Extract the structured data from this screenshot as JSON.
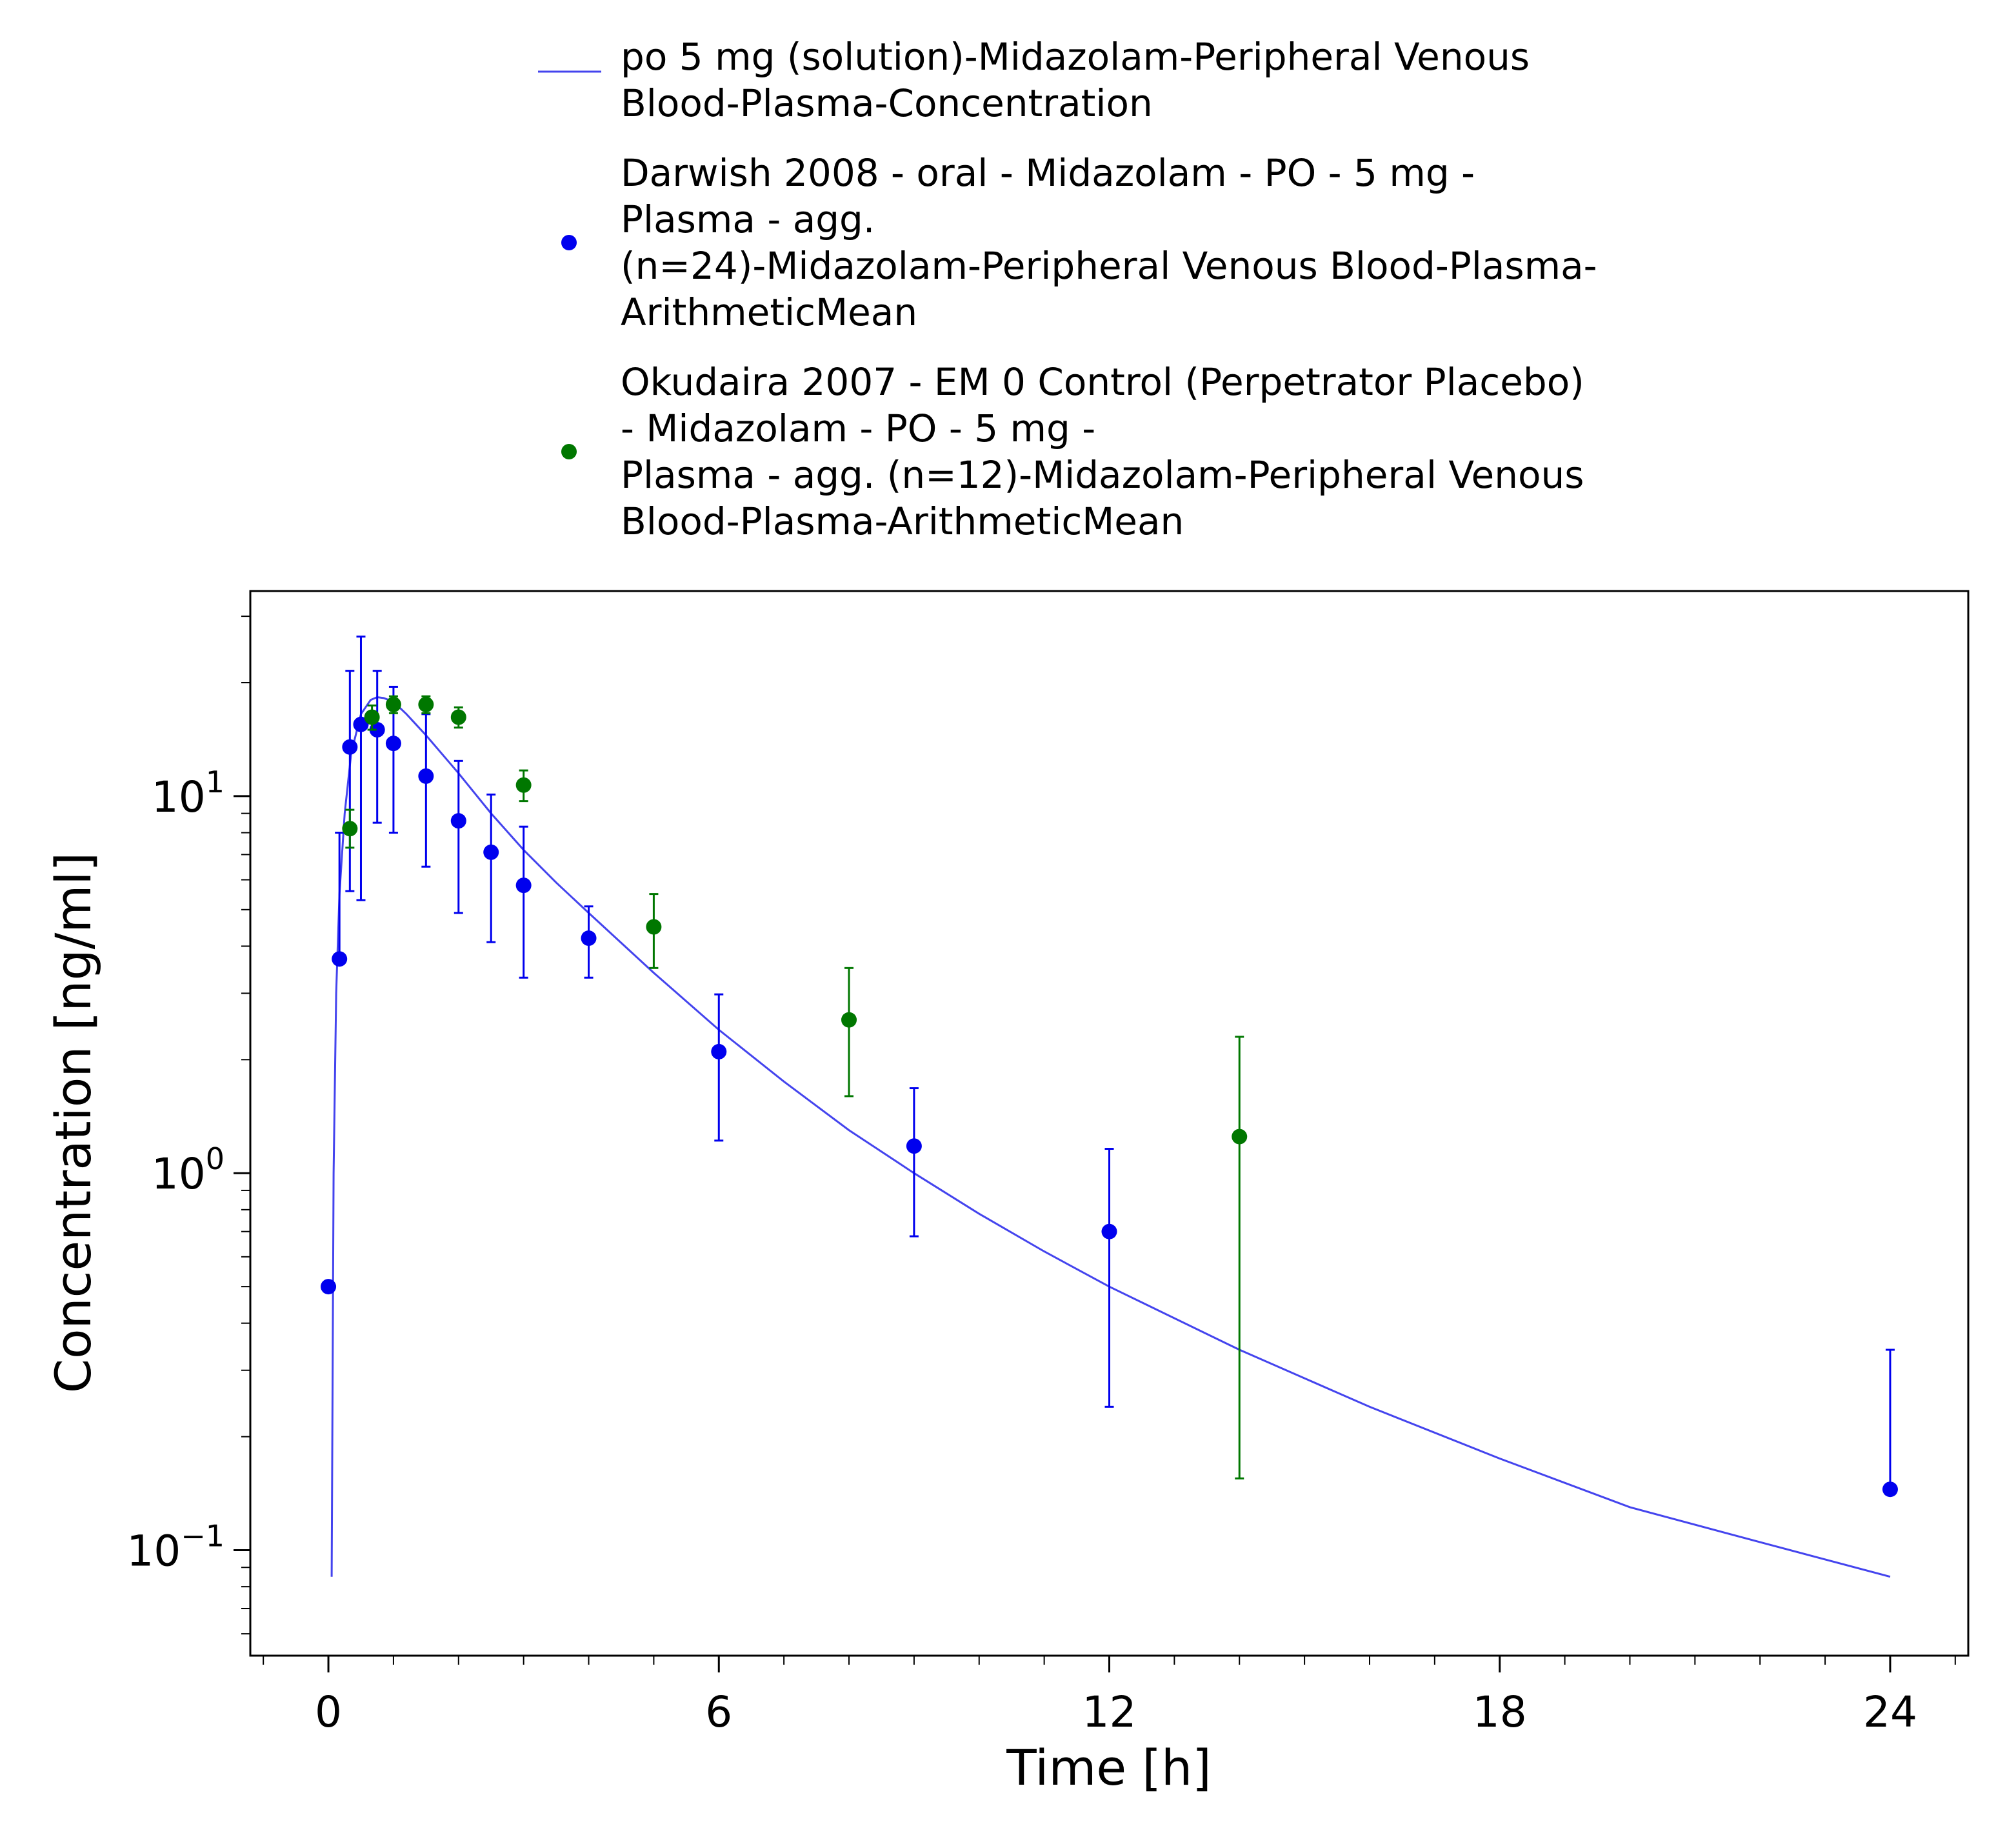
{
  "chart_data": {
    "type": "line",
    "title": "",
    "xlabel": "Time [h]",
    "ylabel": "Concentration [ng/ml]",
    "xlim": [
      -1.2,
      25.2
    ],
    "ylim": [
      0.0525,
      35
    ],
    "y_scale": "log",
    "grid": false,
    "legend_position": "top-center",
    "x_ticks": [
      {
        "value": 0,
        "label": "0"
      },
      {
        "value": 6,
        "label": "6"
      },
      {
        "value": 12,
        "label": "12"
      },
      {
        "value": 18,
        "label": "18"
      },
      {
        "value": 24,
        "label": "24"
      }
    ],
    "y_ticks": [
      {
        "value": 10,
        "base": "10",
        "exp": "1"
      },
      {
        "value": 1,
        "base": "10",
        "exp": "0"
      },
      {
        "value": 0.1,
        "base": "10",
        "exp": "−1"
      }
    ],
    "series": [
      {
        "name_lines": [
          "po 5 mg (solution)-Midazolam-Peripheral Venous",
          "Blood-Plasma-Concentration"
        ],
        "kind": "line",
        "color": "#4444ee",
        "x": [
          0.05,
          0.08,
          0.12,
          0.17,
          0.25,
          0.35,
          0.5,
          0.65,
          0.75,
          0.85,
          1.0,
          1.2,
          1.5,
          2.0,
          2.5,
          3.0,
          3.5,
          4.0,
          5.0,
          6.0,
          7.0,
          8.0,
          9.0,
          10.0,
          11.0,
          12.0,
          14.0,
          16.0,
          18.0,
          20.0,
          22.0,
          24.0
        ],
        "y": [
          0.085,
          1.0,
          3.0,
          5.5,
          9.0,
          13.0,
          16.5,
          18.0,
          18.3,
          18.2,
          17.8,
          16.5,
          14.5,
          11.5,
          9.0,
          7.2,
          5.9,
          4.9,
          3.4,
          2.4,
          1.75,
          1.3,
          1.0,
          0.78,
          0.62,
          0.5,
          0.34,
          0.24,
          0.175,
          0.13,
          0.105,
          0.085
        ]
      },
      {
        "name_lines": [
          "Darwish 2008 - oral - Midazolam - PO - 5 mg -",
          "Plasma - agg.",
          "(n=24)-Midazolam-Peripheral Venous Blood-Plasma-",
          "ArithmeticMean"
        ],
        "kind": "scatter",
        "color": "#0000ee",
        "points": [
          {
            "x": 0.0,
            "y": 0.5,
            "lo": null,
            "hi": null
          },
          {
            "x": 0.17,
            "y": 3.7,
            "lo": null,
            "hi": 8.0
          },
          {
            "x": 0.33,
            "y": 13.5,
            "lo": 5.6,
            "hi": 21.5
          },
          {
            "x": 0.5,
            "y": 15.5,
            "lo": 5.3,
            "hi": 26.5
          },
          {
            "x": 0.75,
            "y": 15.0,
            "lo": 8.5,
            "hi": 21.5
          },
          {
            "x": 1.0,
            "y": 13.8,
            "lo": 8.0,
            "hi": 19.5
          },
          {
            "x": 1.5,
            "y": 11.3,
            "lo": 6.5,
            "hi": 16.5
          },
          {
            "x": 2.0,
            "y": 8.6,
            "lo": 4.9,
            "hi": 12.4
          },
          {
            "x": 2.5,
            "y": 7.1,
            "lo": 4.1,
            "hi": 10.1
          },
          {
            "x": 3.0,
            "y": 5.8,
            "lo": 3.3,
            "hi": 8.3
          },
          {
            "x": 4.0,
            "y": 4.2,
            "lo": 3.3,
            "hi": 5.1
          },
          {
            "x": 6.0,
            "y": 2.1,
            "lo": 1.22,
            "hi": 2.98
          },
          {
            "x": 9.0,
            "y": 1.18,
            "lo": 0.68,
            "hi": 1.68
          },
          {
            "x": 12.0,
            "y": 0.7,
            "lo": 0.24,
            "hi": 1.16
          },
          {
            "x": 24.0,
            "y": 0.145,
            "lo": null,
            "hi": 0.34
          }
        ]
      },
      {
        "name_lines": [
          "Okudaira 2007 - EM 0 Control (Perpetrator Placebo)",
          "- Midazolam - PO - 5 mg -",
          "Plasma - agg. (n=12)-Midazolam-Peripheral Venous",
          "Blood-Plasma-ArithmeticMean"
        ],
        "kind": "scatter",
        "color": "#007700",
        "points": [
          {
            "x": 0.33,
            "y": 8.2,
            "lo": 7.3,
            "hi": 9.2
          },
          {
            "x": 0.67,
            "y": 16.2,
            "lo": 15.0,
            "hi": 17.4
          },
          {
            "x": 1.0,
            "y": 17.5,
            "lo": 16.6,
            "hi": 18.4
          },
          {
            "x": 1.5,
            "y": 17.5,
            "lo": 16.6,
            "hi": 18.4
          },
          {
            "x": 2.0,
            "y": 16.2,
            "lo": 15.2,
            "hi": 17.2
          },
          {
            "x": 3.0,
            "y": 10.7,
            "lo": 9.7,
            "hi": 11.7
          },
          {
            "x": 5.0,
            "y": 4.5,
            "lo": 3.5,
            "hi": 5.5
          },
          {
            "x": 8.0,
            "y": 2.55,
            "lo": 1.6,
            "hi": 3.5
          },
          {
            "x": 14.0,
            "y": 1.25,
            "lo": 0.155,
            "hi": 2.3
          }
        ]
      }
    ]
  }
}
